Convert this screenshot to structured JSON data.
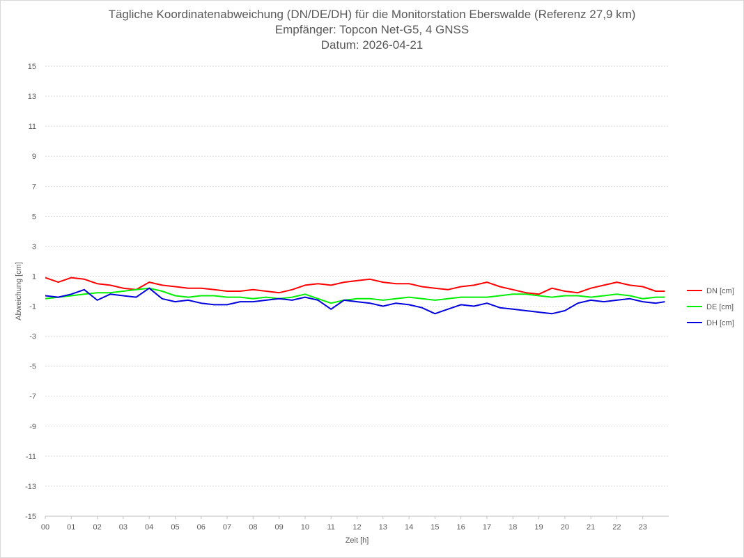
{
  "chart_data": {
    "type": "line",
    "title": "Tägliche Koordinatenabweichung (DN/DE/DH) für die Monitorstation Eberswalde (Referenz 27,9 km)",
    "subtitle": "Empfänger: Topcon Net-G5, 4 GNSS",
    "date_line": "Datum: 2026-04-21",
    "xlabel": "Zeit [h]",
    "ylabel": "Abweichung [cm]",
    "x_tick_labels": [
      "00",
      "01",
      "02",
      "03",
      "04",
      "05",
      "06",
      "07",
      "08",
      "09",
      "10",
      "11",
      "12",
      "13",
      "14",
      "15",
      "16",
      "17",
      "18",
      "19",
      "20",
      "21",
      "22",
      "23"
    ],
    "xlim": [
      0,
      24
    ],
    "ylim": [
      -15,
      15
    ],
    "y_ticks": [
      15,
      13,
      11,
      9,
      7,
      5,
      3,
      1,
      -1,
      -3,
      -5,
      -7,
      -9,
      -11,
      -13,
      -15
    ],
    "grid": "horizontal dotted",
    "legend_position": "right",
    "x": [
      0,
      0.5,
      1,
      1.5,
      2,
      2.5,
      3,
      3.5,
      4,
      4.5,
      5,
      5.5,
      6,
      6.5,
      7,
      7.5,
      8,
      8.5,
      9,
      9.5,
      10,
      10.5,
      11,
      11.5,
      12,
      12.5,
      13,
      13.5,
      14,
      14.5,
      15,
      15.5,
      16,
      16.5,
      17,
      17.5,
      18,
      18.5,
      19,
      19.5,
      20,
      20.5,
      21,
      21.5,
      22,
      22.5,
      23,
      23.5,
      23.85
    ],
    "series": [
      {
        "name": "DN [cm]",
        "color": "#ff0000",
        "values": [
          0.9,
          0.6,
          0.9,
          0.8,
          0.5,
          0.4,
          0.2,
          0.1,
          0.6,
          0.4,
          0.3,
          0.2,
          0.2,
          0.1,
          0.0,
          0.0,
          0.1,
          0.0,
          -0.1,
          0.1,
          0.4,
          0.5,
          0.4,
          0.6,
          0.7,
          0.8,
          0.6,
          0.5,
          0.5,
          0.3,
          0.2,
          0.1,
          0.3,
          0.4,
          0.6,
          0.3,
          0.1,
          -0.1,
          -0.2,
          0.2,
          0.0,
          -0.1,
          0.2,
          0.4,
          0.6,
          0.4,
          0.3,
          0.0,
          0.0
        ]
      },
      {
        "name": "DE [cm]",
        "color": "#00ee00",
        "values": [
          -0.5,
          -0.4,
          -0.3,
          -0.2,
          -0.1,
          -0.1,
          0.0,
          0.1,
          0.2,
          0.0,
          -0.3,
          -0.4,
          -0.3,
          -0.3,
          -0.4,
          -0.4,
          -0.5,
          -0.4,
          -0.5,
          -0.4,
          -0.2,
          -0.5,
          -0.8,
          -0.6,
          -0.5,
          -0.5,
          -0.6,
          -0.5,
          -0.4,
          -0.5,
          -0.6,
          -0.5,
          -0.4,
          -0.4,
          -0.4,
          -0.3,
          -0.2,
          -0.2,
          -0.3,
          -0.4,
          -0.3,
          -0.3,
          -0.4,
          -0.3,
          -0.2,
          -0.3,
          -0.5,
          -0.4,
          -0.4
        ]
      },
      {
        "name": "DH [cm]",
        "color": "#0000dd",
        "values": [
          -0.3,
          -0.4,
          -0.2,
          0.1,
          -0.6,
          -0.2,
          -0.3,
          -0.4,
          0.2,
          -0.5,
          -0.7,
          -0.6,
          -0.8,
          -0.9,
          -0.9,
          -0.7,
          -0.7,
          -0.6,
          -0.5,
          -0.6,
          -0.4,
          -0.6,
          -1.2,
          -0.6,
          -0.7,
          -0.8,
          -1.0,
          -0.8,
          -0.9,
          -1.1,
          -1.5,
          -1.2,
          -0.9,
          -1.0,
          -0.8,
          -1.1,
          -1.2,
          -1.3,
          -1.4,
          -1.5,
          -1.3,
          -0.8,
          -0.6,
          -0.7,
          -0.6,
          -0.5,
          -0.7,
          -0.8,
          -0.7
        ]
      }
    ]
  }
}
